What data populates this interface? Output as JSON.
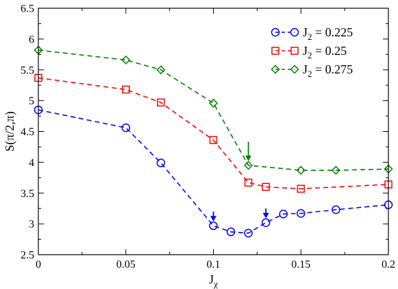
{
  "chart_data": {
    "type": "line",
    "xlabel": "J",
    "xlabel_sub": "χ",
    "ylabel": "S(π/2,π)",
    "xlim": [
      0,
      0.2
    ],
    "ylim": [
      2.5,
      6.5
    ],
    "xticks": [
      0,
      0.05,
      0.1,
      0.15,
      0.2
    ],
    "xtick_labels": [
      "0",
      "0.05",
      "0.1",
      "0.15",
      "0.2"
    ],
    "yticks": [
      2.5,
      3,
      3.5,
      4,
      4.5,
      5,
      5.5,
      6,
      6.5
    ],
    "ytick_labels": [
      "2.5",
      "3",
      "3.5",
      "4",
      "4.5",
      "5",
      "5.5",
      "6",
      "6.5"
    ],
    "grid": false,
    "legend_position": "top-right",
    "series": [
      {
        "name": "J2 = 0.225",
        "legend_main": "J",
        "legend_sub": "2",
        "legend_rest": " = 0.225",
        "color": "#0000ff",
        "marker": "circle",
        "x": [
          0,
          0.05,
          0.07,
          0.1,
          0.11,
          0.12,
          0.13,
          0.14,
          0.15,
          0.17,
          0.2
        ],
        "y": [
          4.85,
          4.56,
          3.99,
          2.97,
          2.87,
          2.85,
          3.02,
          3.16,
          3.17,
          3.23,
          3.31
        ]
      },
      {
        "name": "J2 = 0.25",
        "legend_main": "J",
        "legend_sub": "2",
        "legend_rest": " = 0.25",
        "color": "#ff0000",
        "marker": "square",
        "x": [
          0,
          0.05,
          0.07,
          0.1,
          0.12,
          0.13,
          0.15,
          0.2
        ],
        "y": [
          5.37,
          5.18,
          4.97,
          4.36,
          3.67,
          3.6,
          3.57,
          3.64
        ]
      },
      {
        "name": "J2 = 0.275",
        "legend_main": "J",
        "legend_sub": "2",
        "legend_rest": " = 0.275",
        "color": "#008000",
        "marker": "diamond",
        "x": [
          0,
          0.05,
          0.07,
          0.1,
          0.12,
          0.15,
          0.17,
          0.2
        ],
        "y": [
          5.82,
          5.66,
          5.5,
          4.96,
          3.95,
          3.87,
          3.87,
          3.89
        ]
      }
    ],
    "annotations": [
      {
        "type": "arrow",
        "color": "#0000ff",
        "x": 0.1,
        "y_from": 3.2,
        "y_to": 3.05
      },
      {
        "type": "arrow",
        "color": "#0000ff",
        "x": 0.13,
        "y_from": 3.25,
        "y_to": 3.1
      },
      {
        "type": "arrow",
        "color": "#008000",
        "x": 0.12,
        "y_from": 4.33,
        "y_to": 4.03
      }
    ]
  }
}
